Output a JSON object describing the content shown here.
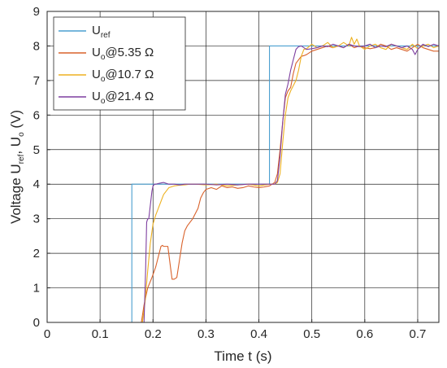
{
  "chart_data": {
    "type": "line",
    "title": "",
    "xlabel": "Time t (s)",
    "ylabel": {
      "main": "Voltage U",
      "sub1": "ref",
      "mid": ", U",
      "sub2": "o",
      "unit": " (V)"
    },
    "xlim": [
      0,
      0.74
    ],
    "ylim": [
      0,
      9
    ],
    "xticks": [
      0,
      0.1,
      0.2,
      0.3,
      0.4,
      0.5,
      0.6,
      0.7
    ],
    "xtick_labels": [
      "0",
      "0.1",
      "0.2",
      "0.3",
      "0.4",
      "0.5",
      "0.6",
      "0.7"
    ],
    "yticks": [
      0,
      1,
      2,
      3,
      4,
      5,
      6,
      7,
      8,
      9
    ],
    "ytick_labels": [
      "0",
      "1",
      "2",
      "3",
      "4",
      "5",
      "6",
      "7",
      "8",
      "9"
    ],
    "grid": true,
    "legend_position": "top-left",
    "series": [
      {
        "legend": {
          "main": "U",
          "sub": "ref",
          "suffix": ""
        },
        "color": "#4a9fd0",
        "x": [
          0.03,
          0.16,
          0.16,
          0.42,
          0.42,
          0.74
        ],
        "y": [
          0,
          0,
          4,
          4,
          8,
          8
        ]
      },
      {
        "legend": {
          "main": "U",
          "sub": "o",
          "suffix": "@5.35 Ω"
        },
        "color": "#d9622b",
        "x": [
          0.03,
          0.178,
          0.183,
          0.19,
          0.198,
          0.205,
          0.21,
          0.215,
          0.218,
          0.22,
          0.228,
          0.233,
          0.236,
          0.24,
          0.245,
          0.25,
          0.255,
          0.26,
          0.265,
          0.27,
          0.275,
          0.28,
          0.285,
          0.29,
          0.295,
          0.3,
          0.31,
          0.32,
          0.33,
          0.34,
          0.35,
          0.36,
          0.37,
          0.38,
          0.39,
          0.4,
          0.41,
          0.42,
          0.43,
          0.435,
          0.44,
          0.445,
          0.45,
          0.455,
          0.46,
          0.465,
          0.47,
          0.475,
          0.48,
          0.485,
          0.49,
          0.5,
          0.51,
          0.52,
          0.53,
          0.54,
          0.55,
          0.56,
          0.57,
          0.58,
          0.59,
          0.6,
          0.61,
          0.62,
          0.63,
          0.64,
          0.65,
          0.66,
          0.67,
          0.68,
          0.69,
          0.7,
          0.71,
          0.72,
          0.73,
          0.74
        ],
        "y": [
          0,
          0,
          0.5,
          1.0,
          1.3,
          1.6,
          1.9,
          2.2,
          2.23,
          2.2,
          2.2,
          1.6,
          1.25,
          1.25,
          1.3,
          1.8,
          2.3,
          2.65,
          2.8,
          2.9,
          3.0,
          3.15,
          3.3,
          3.6,
          3.75,
          3.85,
          3.9,
          3.85,
          3.95,
          3.9,
          3.92,
          3.88,
          3.9,
          3.95,
          3.92,
          3.9,
          3.92,
          3.95,
          4.05,
          4.3,
          5.0,
          5.8,
          6.5,
          6.7,
          6.8,
          7.2,
          7.5,
          7.6,
          7.7,
          7.72,
          7.75,
          7.85,
          7.9,
          7.95,
          8.0,
          7.95,
          8.0,
          7.95,
          8.05,
          7.95,
          8.0,
          7.95,
          7.92,
          7.95,
          8.05,
          8.0,
          7.9,
          7.95,
          7.9,
          7.85,
          7.95,
          8.05,
          7.95,
          7.9,
          7.85,
          7.85
        ]
      },
      {
        "legend": {
          "main": "U",
          "sub": "o",
          "suffix": "@10.7 Ω"
        },
        "color": "#edb120",
        "x": [
          0.03,
          0.18,
          0.185,
          0.19,
          0.195,
          0.2,
          0.205,
          0.21,
          0.215,
          0.22,
          0.23,
          0.24,
          0.25,
          0.26,
          0.27,
          0.28,
          0.3,
          0.32,
          0.34,
          0.36,
          0.38,
          0.4,
          0.42,
          0.43,
          0.435,
          0.44,
          0.445,
          0.45,
          0.455,
          0.46,
          0.465,
          0.47,
          0.475,
          0.48,
          0.485,
          0.49,
          0.5,
          0.51,
          0.52,
          0.53,
          0.54,
          0.55,
          0.56,
          0.57,
          0.575,
          0.58,
          0.585,
          0.59,
          0.6,
          0.61,
          0.62,
          0.63,
          0.64,
          0.65,
          0.66,
          0.67,
          0.68,
          0.69,
          0.7,
          0.71,
          0.72,
          0.73,
          0.74
        ],
        "y": [
          0,
          0,
          0.6,
          1.5,
          2.3,
          2.85,
          3.1,
          3.3,
          3.5,
          3.7,
          3.9,
          3.95,
          3.97,
          3.98,
          4.0,
          4.0,
          3.98,
          4.0,
          3.95,
          3.98,
          4.0,
          3.95,
          4.0,
          4.0,
          4.05,
          4.3,
          5.2,
          6.0,
          6.5,
          6.7,
          6.85,
          7.0,
          7.3,
          7.7,
          7.9,
          7.92,
          8.05,
          7.95,
          8.0,
          8.1,
          7.95,
          8.0,
          8.1,
          8.0,
          8.25,
          8.05,
          8.2,
          8.0,
          7.9,
          8.0,
          8.05,
          7.95,
          7.9,
          8.05,
          8.0,
          7.95,
          7.9,
          8.05,
          7.92,
          8.0,
          8.05,
          7.95,
          8.0
        ]
      },
      {
        "legend": {
          "main": "U",
          "sub": "o",
          "suffix": "@21.4 Ω"
        },
        "color": "#7e3fa0",
        "x": [
          0.03,
          0.183,
          0.186,
          0.188,
          0.19,
          0.192,
          0.195,
          0.198,
          0.2,
          0.203,
          0.205,
          0.21,
          0.22,
          0.23,
          0.24,
          0.25,
          0.26,
          0.28,
          0.3,
          0.32,
          0.34,
          0.36,
          0.38,
          0.4,
          0.42,
          0.43,
          0.435,
          0.44,
          0.445,
          0.45,
          0.455,
          0.46,
          0.465,
          0.47,
          0.475,
          0.48,
          0.49,
          0.5,
          0.51,
          0.52,
          0.53,
          0.54,
          0.55,
          0.56,
          0.57,
          0.58,
          0.59,
          0.6,
          0.61,
          0.62,
          0.63,
          0.64,
          0.65,
          0.66,
          0.67,
          0.68,
          0.69,
          0.695,
          0.7,
          0.71,
          0.72,
          0.73,
          0.74
        ],
        "y": [
          0,
          0,
          1.5,
          2.9,
          3.0,
          3.0,
          3.4,
          3.8,
          3.95,
          4.0,
          4.0,
          4.02,
          4.05,
          4.0,
          4.0,
          3.98,
          4.0,
          4.0,
          4.0,
          3.98,
          4.0,
          3.98,
          4.0,
          4.0,
          4.0,
          4.0,
          4.1,
          4.8,
          5.8,
          6.6,
          6.9,
          7.3,
          7.6,
          7.9,
          7.98,
          8.0,
          7.9,
          7.92,
          7.95,
          8.0,
          7.98,
          8.05,
          8.0,
          7.95,
          8.05,
          8.0,
          7.98,
          8.0,
          8.05,
          7.95,
          8.0,
          7.98,
          8.05,
          8.0,
          7.95,
          8.0,
          7.9,
          7.75,
          7.9,
          8.05,
          7.98,
          8.05,
          8.0
        ]
      }
    ]
  }
}
